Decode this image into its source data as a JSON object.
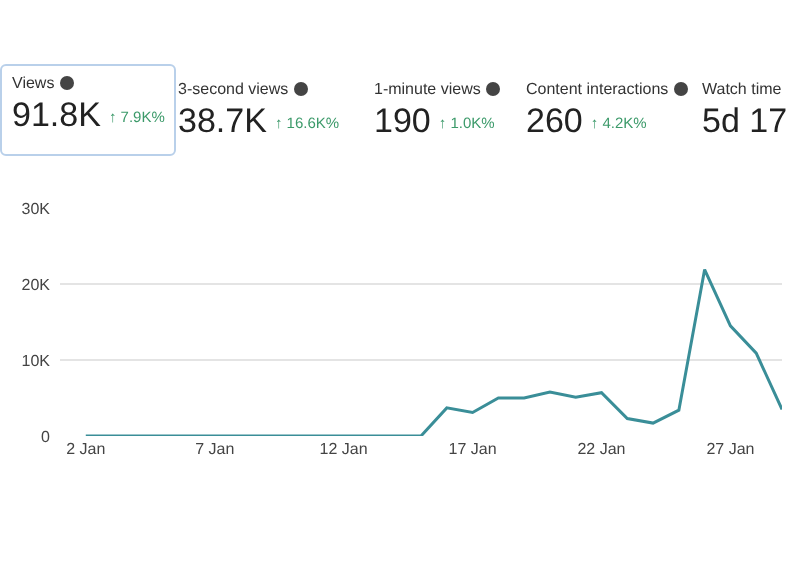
{
  "chart_data": [
    {
      "type": "other",
      "categories": [
        "Views",
        "3-second views",
        "1-minute views",
        "Content interactions",
        "Watch time"
      ],
      "value_labels": [
        "91.8K",
        "38.7K",
        "190",
        "260",
        "5d 17"
      ],
      "annotations": [
        "↑ 7.9K%",
        "↑ 16.6K%",
        "↑ 1.0K%",
        "↑ 4.2K%"
      ]
    },
    {
      "type": "line",
      "x": [
        "--01-02",
        "--01-03",
        "--01-04",
        "--01-05",
        "--01-06",
        "--01-07",
        "--01-08",
        "--01-09",
        "--01-10",
        "--01-11",
        "--01-12",
        "--01-13",
        "--01-14",
        "--01-15",
        "--01-16",
        "--01-17",
        "--01-18",
        "--01-19",
        "--01-20",
        "--01-21",
        "--01-22",
        "--01-23",
        "--01-24",
        "--01-25",
        "--01-26",
        "--01-27",
        "--01-28",
        "--01-29"
      ],
      "series": [
        {
          "color": "#3a8e98",
          "values": [
            0,
            0,
            0,
            0,
            0,
            0,
            0,
            0,
            0,
            0,
            0,
            0,
            0,
            0,
            3700,
            3100,
            5000,
            5000,
            5800,
            5100,
            5700,
            2300,
            1700,
            3400,
            21900,
            14500,
            10900,
            3500
          ]
        }
      ],
      "xlim": [
        "--01-01",
        "--01-29"
      ],
      "xticks": [
        {
          "value": "--01-02",
          "label": "2 Jan"
        },
        {
          "value": "--01-07",
          "label": "7 Jan"
        },
        {
          "value": "--01-12",
          "label": "12 Jan"
        },
        {
          "value": "--01-17",
          "label": "17 Jan"
        },
        {
          "value": "--01-22",
          "label": "22 Jan"
        },
        {
          "value": "--01-27",
          "label": "27 Jan"
        }
      ],
      "ylim": [
        0,
        30000
      ],
      "yticks": [
        0,
        {
          "value": 10000,
          "label": "10K"
        },
        {
          "value": 20000,
          "label": "20K"
        },
        {
          "value": 30000,
          "label": "30K"
        }
      ],
      "grid": "y",
      "legend": false,
      "marker": "none",
      "line_style": "solid"
    }
  ]
}
